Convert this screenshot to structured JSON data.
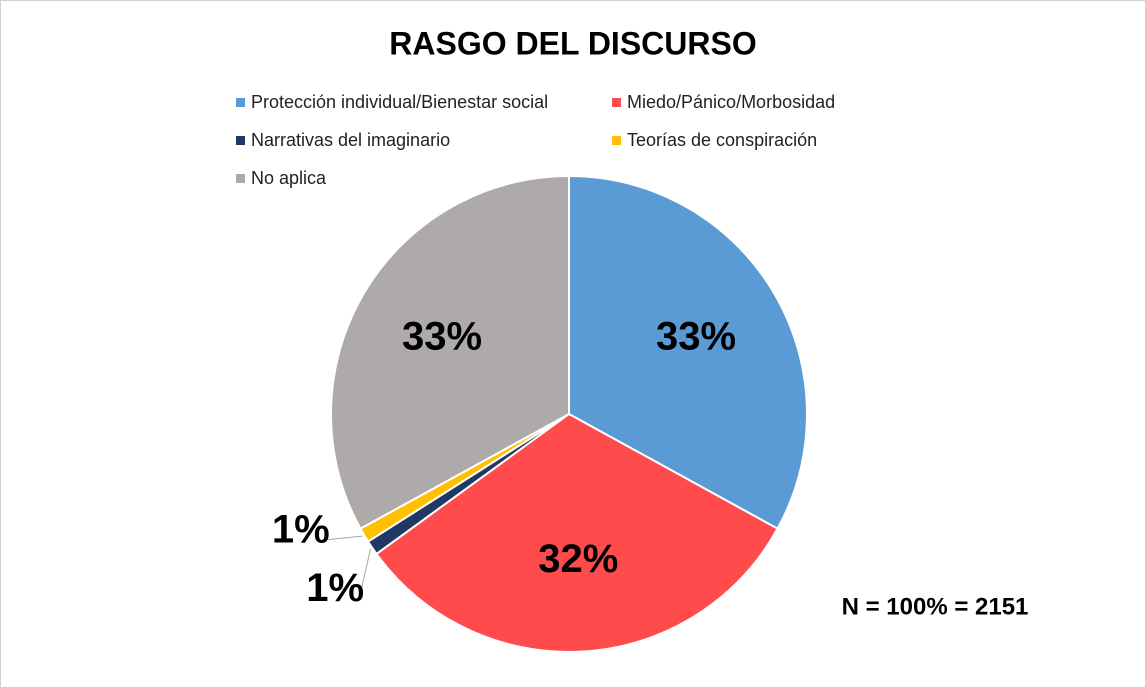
{
  "chart_data": {
    "type": "pie",
    "title": "RASGO DEL DISCURSO",
    "categories": [
      "Protección individual/Bienestar social",
      "Miedo/Pánico/Morbosidad",
      "Narrativas del imaginario",
      "Teorías de conspiración",
      "No aplica"
    ],
    "values": [
      33,
      32,
      1,
      1,
      33
    ],
    "value_labels": [
      "33%",
      "32%",
      "1%",
      "1%",
      "33%"
    ],
    "colors": [
      "#5b9bd5",
      "#ff4b4b",
      "#203864",
      "#ffc000",
      "#aeaaaa"
    ],
    "annotation": "N = 100% = 2151"
  }
}
